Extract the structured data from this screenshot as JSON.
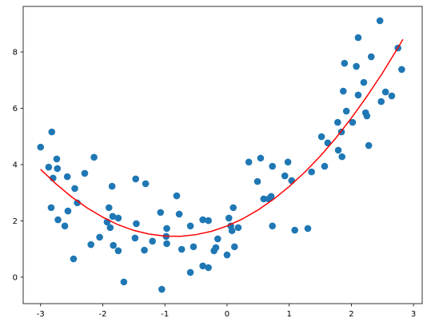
{
  "chart_data": {
    "type": "scatter",
    "xlim": [
      -3.28,
      3.14
    ],
    "ylim": [
      -0.94,
      9.62
    ],
    "xticks": [
      -3,
      -2,
      -1,
      0,
      1,
      2,
      3
    ],
    "yticks": [
      0,
      2,
      4,
      6,
      8
    ],
    "series": [
      {
        "type": "scatter",
        "color": "#1f77b4",
        "x": [
          -3.0,
          -2.87,
          -2.82,
          -2.8,
          -2.74,
          -2.73,
          -2.83,
          -2.72,
          -2.61,
          -2.57,
          -2.56,
          -2.45,
          -2.41,
          -2.47,
          -2.29,
          -2.19,
          -2.14,
          -2.05,
          -1.93,
          -1.9,
          -1.88,
          -1.85,
          -1.84,
          -1.83,
          -1.75,
          -1.75,
          -1.66,
          -1.48,
          -1.47,
          -1.46,
          -1.33,
          -1.31,
          -1.2,
          -1.07,
          -1.05,
          -0.98,
          -0.97,
          -0.97,
          -0.81,
          -0.77,
          -0.73,
          -0.59,
          -0.59,
          -0.54,
          -0.39,
          -0.39,
          -0.3,
          -0.3,
          -0.21,
          -0.15,
          -0.18,
          0.0,
          0.03,
          0.06,
          0.08,
          0.1,
          0.12,
          0.18,
          0.35,
          0.49,
          0.54,
          0.59,
          0.67,
          0.71,
          0.73,
          0.73,
          0.93,
          0.98,
          1.04,
          1.09,
          1.3,
          1.36,
          1.52,
          1.57,
          1.62,
          1.78,
          1.79,
          1.84,
          1.85,
          1.87,
          1.89,
          1.92,
          2.02,
          2.08,
          2.11,
          2.11,
          2.2,
          2.23,
          2.25,
          2.28,
          2.32,
          2.46,
          2.48,
          2.55,
          2.65,
          2.75,
          2.81
        ],
        "values": [
          4.62,
          3.91,
          5.16,
          3.52,
          4.2,
          3.86,
          2.47,
          2.04,
          1.82,
          3.57,
          2.35,
          3.15,
          2.64,
          0.65,
          3.69,
          1.16,
          4.26,
          1.42,
          1.96,
          2.47,
          1.76,
          3.23,
          2.16,
          1.13,
          2.1,
          0.94,
          -0.17,
          1.39,
          3.49,
          1.9,
          0.96,
          3.32,
          1.28,
          2.3,
          -0.43,
          1.45,
          1.73,
          1.19,
          2.89,
          2.24,
          0.99,
          0.17,
          1.82,
          1.08,
          2.04,
          0.4,
          2.01,
          0.34,
          0.94,
          1.36,
          1.05,
          0.79,
          2.1,
          1.82,
          1.65,
          2.47,
          1.08,
          1.76,
          4.09,
          3.4,
          4.23,
          2.78,
          2.78,
          2.87,
          3.94,
          1.82,
          3.6,
          4.09,
          3.43,
          1.67,
          1.73,
          3.74,
          4.99,
          3.94,
          4.77,
          5.5,
          4.51,
          5.16,
          4.28,
          6.61,
          7.6,
          5.9,
          5.5,
          7.49,
          8.51,
          6.47,
          6.92,
          5.84,
          5.73,
          4.68,
          7.83,
          9.11,
          6.24,
          6.58,
          6.44,
          8.14,
          7.38
        ]
      },
      {
        "type": "line",
        "color": "#ff0000",
        "x": [
          -3,
          -2.75,
          -2.5,
          -2.25,
          -2,
          -1.75,
          -1.5,
          -1.25,
          -1,
          -0.75,
          -0.5,
          -0.25,
          0,
          0.25,
          0.5,
          0.75,
          1,
          1.25,
          1.5,
          1.75,
          2,
          2.25,
          2.5,
          2.75,
          2.83
        ],
        "values": [
          3.83,
          3.31,
          2.85,
          2.46,
          2.13,
          1.86,
          1.66,
          1.53,
          1.46,
          1.45,
          1.51,
          1.63,
          1.82,
          2.07,
          2.39,
          2.77,
          3.22,
          3.73,
          4.3,
          4.94,
          5.65,
          6.42,
          7.25,
          8.15,
          8.45
        ]
      }
    ]
  }
}
